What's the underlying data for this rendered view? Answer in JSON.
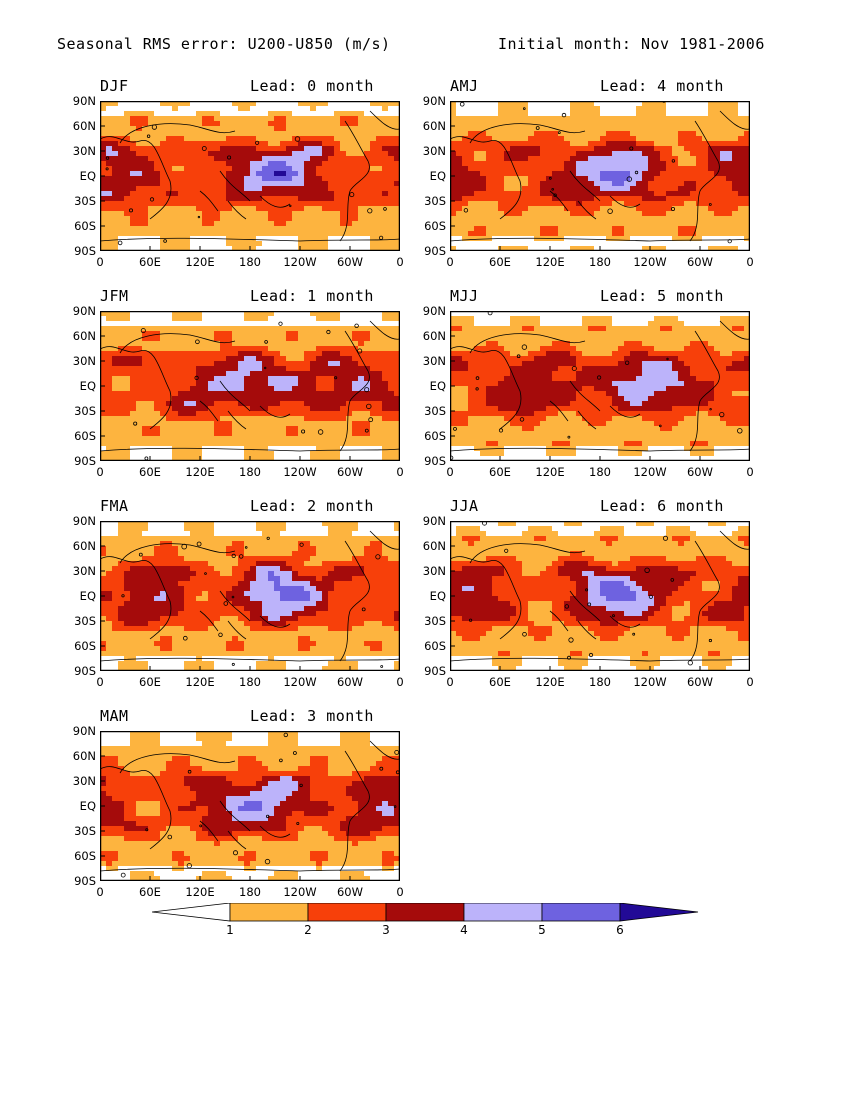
{
  "header": {
    "title": "Seasonal RMS error: U200-U850 (m/s)",
    "initial": "Initial month: Nov 1981-2006"
  },
  "lat_ticks": [
    "90N",
    "60N",
    "30N",
    "EQ",
    "30S",
    "60S",
    "90S"
  ],
  "lon_ticks": [
    "0",
    "60E",
    "120E",
    "180",
    "120W",
    "60W",
    "0"
  ],
  "panels": [
    {
      "season": "DJF",
      "lead": "Lead: 0 month"
    },
    {
      "season": "AMJ",
      "lead": "Lead: 4 month"
    },
    {
      "season": "JFM",
      "lead": "Lead: 1 month"
    },
    {
      "season": "MJJ",
      "lead": "Lead: 5 month"
    },
    {
      "season": "FMA",
      "lead": "Lead: 2 month"
    },
    {
      "season": "JJA",
      "lead": "Lead: 6 month"
    },
    {
      "season": "MAM",
      "lead": "Lead: 3 month"
    }
  ],
  "colorbar": {
    "labels": [
      "1",
      "2",
      "3",
      "4",
      "5",
      "6"
    ],
    "colors": [
      "#ffffff",
      "#fdb43f",
      "#f7400a",
      "#a50b0b",
      "#bcb3fa",
      "#6e62e0",
      "#220a96"
    ]
  }
}
